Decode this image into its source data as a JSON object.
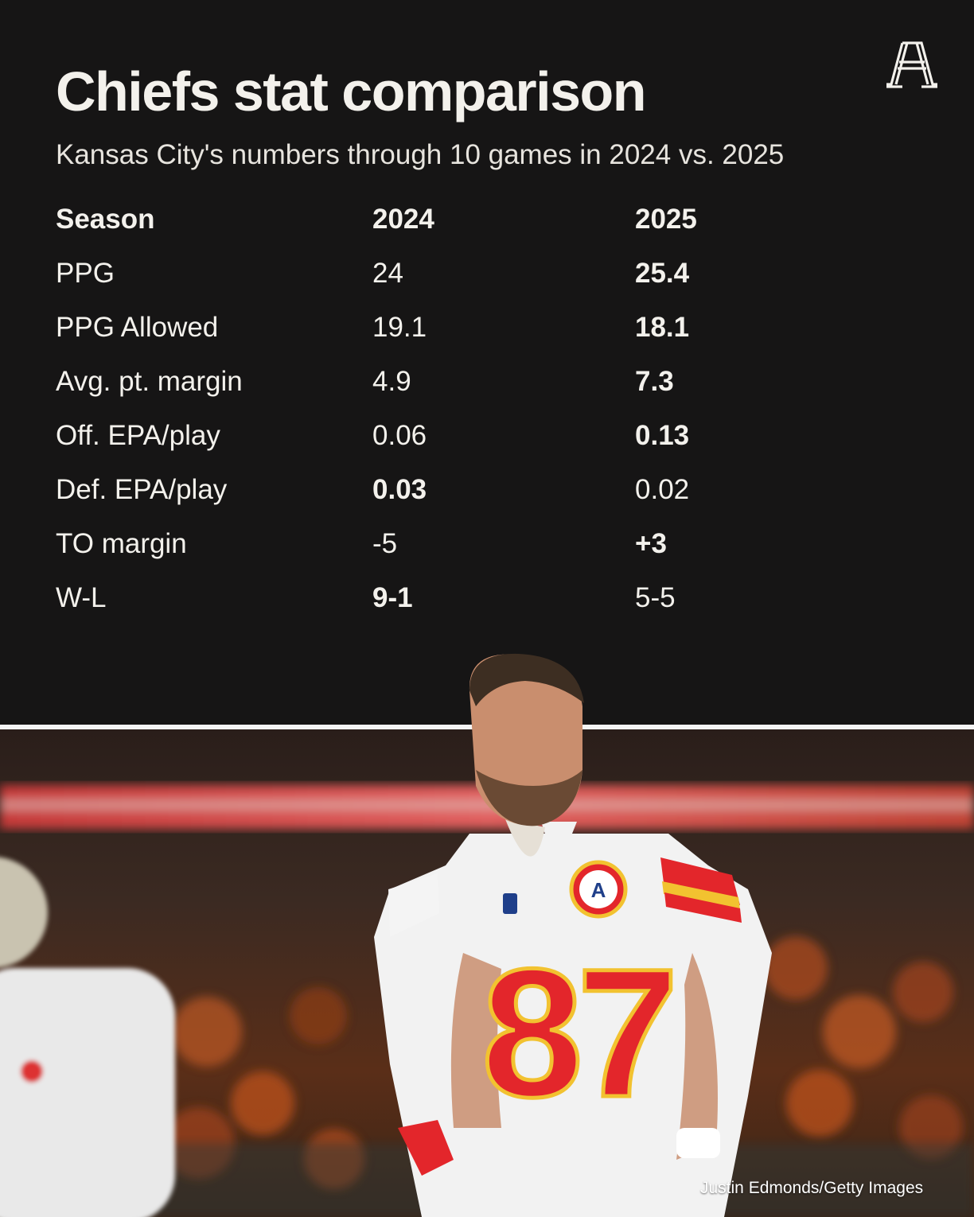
{
  "header": {
    "title": "Chiefs stat comparison",
    "subtitle": "Kansas City's numbers through 10 games in 2024 vs. 2025"
  },
  "table": {
    "columns": [
      "Season",
      "2024",
      "2025"
    ],
    "rows": [
      {
        "label": "PPG",
        "v2024": "24",
        "v2025": "25.4",
        "bold": "2025"
      },
      {
        "label": "PPG Allowed",
        "v2024": "19.1",
        "v2025": "18.1",
        "bold": "2025"
      },
      {
        "label": "Avg. pt. margin",
        "v2024": "4.9",
        "v2025": "7.3",
        "bold": "2025"
      },
      {
        "label": "Off. EPA/play",
        "v2024": "0.06",
        "v2025": "0.13",
        "bold": "2025"
      },
      {
        "label": "Def. EPA/play",
        "v2024": "0.03",
        "v2025": "0.02",
        "bold": "2024"
      },
      {
        "label": "TO margin",
        "v2024": "-5",
        "v2025": "+3",
        "bold": "2025"
      },
      {
        "label": "W-L",
        "v2024": "9-1",
        "v2025": "5-5",
        "bold": "2024"
      }
    ]
  },
  "photo": {
    "credit": "Justin Edmonds/Getty Images",
    "jersey_number": "87"
  },
  "colors": {
    "background": "#161515",
    "text": "#f3f1ec",
    "jersey_red": "#e3262b",
    "jersey_gold": "#f2c230",
    "crowd_orange": "#c5541f"
  },
  "icons": {
    "logo": "the-athletic-logo"
  }
}
